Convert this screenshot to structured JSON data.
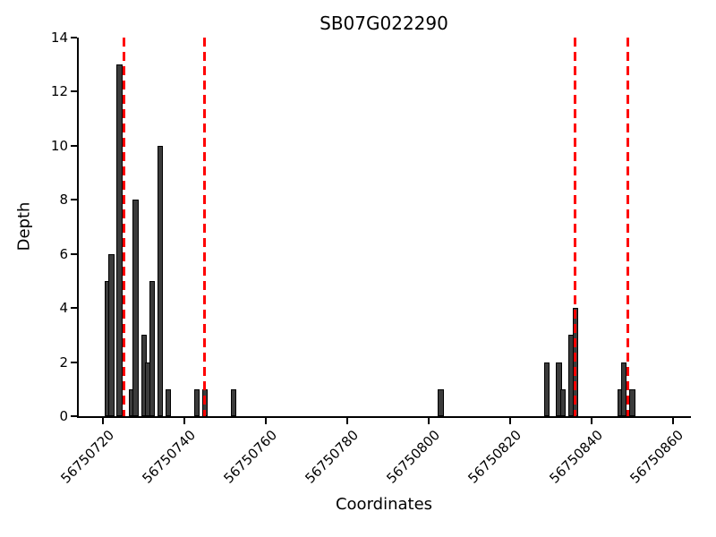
{
  "chart_data": {
    "type": "bar",
    "title": "SB07G022290",
    "xlabel": "Coordinates",
    "ylabel": "Depth",
    "xlim": [
      56750714,
      56750864
    ],
    "ylim": [
      0,
      14
    ],
    "xticks": [
      56750720,
      56750740,
      56750760,
      56750780,
      56750800,
      56750820,
      56750840,
      56750860
    ],
    "yticks": [
      0,
      2,
      4,
      6,
      8,
      10,
      12,
      14
    ],
    "bar_width": 1.4,
    "bars": [
      {
        "x": 56750721,
        "depth": 5
      },
      {
        "x": 56750722,
        "depth": 6
      },
      {
        "x": 56750724,
        "depth": 13
      },
      {
        "x": 56750727,
        "depth": 1
      },
      {
        "x": 56750728,
        "depth": 8
      },
      {
        "x": 56750730,
        "depth": 3
      },
      {
        "x": 56750731,
        "depth": 2
      },
      {
        "x": 56750732,
        "depth": 5
      },
      {
        "x": 56750734,
        "depth": 10
      },
      {
        "x": 56750736,
        "depth": 1
      },
      {
        "x": 56750743,
        "depth": 1
      },
      {
        "x": 56750745,
        "depth": 1
      },
      {
        "x": 56750752,
        "depth": 1
      },
      {
        "x": 56750803,
        "depth": 1
      },
      {
        "x": 56750829,
        "depth": 2
      },
      {
        "x": 56750832,
        "depth": 2
      },
      {
        "x": 56750833,
        "depth": 1
      },
      {
        "x": 56750835,
        "depth": 3
      },
      {
        "x": 56750836,
        "depth": 4
      },
      {
        "x": 56750847,
        "depth": 1
      },
      {
        "x": 56750848,
        "depth": 2
      },
      {
        "x": 56750850,
        "depth": 1
      }
    ],
    "vlines": [
      56750725,
      56750745,
      56750836,
      56750849
    ],
    "legend": "off",
    "grid": "off",
    "bar_color": "#3b3b3b",
    "bar_edge_color": "#000000",
    "vline_color": "#ff0000",
    "axis_color": "#000000"
  }
}
